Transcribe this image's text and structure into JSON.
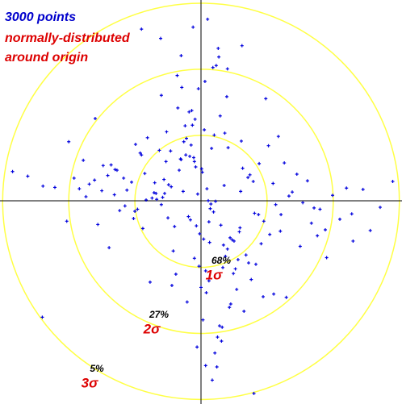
{
  "chart_data": {
    "type": "scatter",
    "annotations": [
      "3000 points",
      "normally-distributed",
      "around origin"
    ],
    "color": "#0000dd",
    "xlim": [
      -3.04,
      3.04
    ],
    "ylim": [
      -3.06,
      3.04
    ],
    "rings": {
      "color": "#ffff44",
      "radii": [
        1,
        2,
        3
      ],
      "labels": [
        "1σ",
        "2σ",
        "3σ"
      ],
      "values": [
        68,
        27,
        5
      ],
      "value_labels": [
        "68%",
        "27%",
        "5%"
      ]
    },
    "x": [
      0.12,
      -0.45,
      0.88,
      -1.23,
      0.05,
      0.34,
      -0.67,
      1.45,
      -0.21,
      0.09,
      -1.78,
      0.56,
      0.23,
      -0.05,
      2.1,
      -0.38,
      0.71,
      -0.92,
      0.15,
      -0.02,
      1.02,
      -0.14,
      0.47,
      -2.21,
      0.31,
      -0.58,
      0.83,
      0.02,
      -0.29,
      1.67,
      -1.05,
      0.19,
      -0.44,
      0.61,
      -0.08,
      2.45,
      -1.39,
      0.26,
      0.94,
      -0.71,
      -0.33,
      0.52,
      -1.61,
      0.07,
      1.21,
      -0.17,
      0.39,
      -0.96,
      0.11,
      -2.62,
      0.68,
      -0.24,
      1.88,
      -0.49,
      0.03,
      -0.81,
      1.33,
      -0.12,
      0.44,
      -1.15,
      0.29,
      -0.07,
      0.76,
      -1.48,
      2.71,
      -0.36,
      0.13,
      1.09,
      -0.63,
      0.21,
      -0.27,
      0.58,
      -1.92,
      0.36,
      -0.1,
      1.54,
      -0.53,
      0.08,
      -0.85,
      0.98,
      -0.19,
      0.41,
      -1.31,
      0.65,
      0.01,
      -2.03,
      1.17,
      -0.42,
      0.27,
      -0.74,
      1.76,
      -0.09,
      0.49,
      -1.12,
      0.17,
      -0.31,
      2.28,
      -0.56,
      0.72,
      -1.69,
      0.06,
      -0.88,
      1.38,
      -0.23,
      0.54,
      -1.41,
      0.14,
      0.91,
      -0.61,
      0.33,
      -2.39,
      1.26,
      -0.16,
      0.45,
      -0.99,
      0.22,
      -0.06,
      1.61,
      -1.27,
      0.37,
      -0.52,
      0.81,
      -0.11,
      1.99,
      -0.77,
      0.18,
      -1.56,
      0.63,
      0.04,
      -0.35,
      1.13,
      -1.84,
      0.28,
      -0.46,
      0.79,
      -0.03,
      2.56,
      -0.68,
      0.1,
      -1.02,
      0.5,
      -0.26,
      1.71,
      -0.6,
      0.24,
      -1.17,
      0.87,
      -0.13,
      -2.85,
      0.4,
      -0.83,
      1.29,
      0.16,
      -0.4,
      0.62,
      -1.5,
      0.07,
      1.04,
      -0.3,
      0.32,
      -0.7,
      1.9,
      -0.04,
      0.59,
      -1.36,
      0.25,
      -0.55,
      0.95,
      -0.18,
      2.2,
      -1.0,
      0.43,
      -0.22,
      0.74,
      -1.74,
      0.12,
      -0.9,
      1.5,
      -0.15,
      0.3,
      0.2,
      -0.5,
      2.9,
      -1.6,
      0.8,
      -0.1,
      1.2,
      -2.4,
      0.6,
      -0.3,
      1.8,
      -0.9,
      0.0,
      -1.3,
      2.3,
      0.4,
      -0.6,
      1.1,
      -2.0,
      0.35
    ],
    "y": [
      -0.31,
      0.22,
      0.57,
      -0.14,
      1.08,
      -0.66,
      0.03,
      0.41,
      -1.52,
      0.19,
      0.62,
      -0.88,
      2.05,
      0.11,
      -0.27,
      -1.1,
      0.36,
      0.73,
      -0.04,
      -0.49,
      0.84,
      1.37,
      -0.58,
      0.21,
      -2.11,
      0.06,
      -0.95,
      0.44,
      1.72,
      -0.33,
      0.29,
      -0.16,
      -1.27,
      0.91,
      0.52,
      0.18,
      -0.7,
      2.31,
      -1.44,
      0.13,
      0.47,
      -1.02,
      0.32,
      -2.48,
      -0.2,
      0.68,
      1.58,
      -0.12,
      0.01,
      0.38,
      -0.81,
      1.14,
      -0.43,
      0.25,
      -1.79,
      0.96,
      0.08,
      2.63,
      -0.55,
      -0.07,
      1.29,
      -0.37,
      -1.18,
      0.54,
      -0.09,
      1.9,
      -0.62,
      0.27,
      0.77,
      -2.29,
      0.15,
      -0.46,
      0.35,
      1.03,
      -0.86,
      -0.02,
      0.6,
      -1.38,
      0.42,
      1.55,
      -0.23,
      0.81,
      0.1,
      -1.66,
      0.49,
      -0.3,
      0.98,
      -0.75,
      2.18,
      0.05,
      -0.52,
      1.24,
      -1.09,
      0.17,
      -2.7,
      0.64,
      -0.19,
      0.33,
      -0.93,
      0.26,
      1.81,
      -0.41,
      0.14,
      0.7,
      -1.33,
      0.39,
      -0.11,
      -0.64,
      2.46,
      -1.0,
      0.23,
      0.58,
      -0.28,
      -1.55,
      0.86,
      0.0,
      -2.2,
      0.31,
      0.47,
      -0.83,
      1.05,
      -0.18,
      0.66,
      0.09,
      -1.22,
      2.02,
      -0.35,
      0.5,
      -0.57,
      1.41,
      -0.05,
      0.19,
      -1.88,
      0.76,
      0.3,
      -0.98,
      -0.44,
      0.12,
      2.75,
      -0.26,
      -0.6,
      0.9,
      -0.1,
      1.6,
      -2.5,
      0.35,
      -0.2,
      1.15,
      0.45,
      -0.72,
      0.02,
      -1.45,
      0.8,
      -0.38,
      2.35,
      0.16,
      -1.05,
      -0.5,
      0.63,
      -1.9,
      0.28,
      -0.85,
      1.7,
      -0.4,
      0.55,
      -2.05,
      0.12,
      -0.3,
      1.35,
      0.2,
      -0.15,
      -1.6,
      0.95,
      0.4,
      0.07,
      -1.2,
      2.6,
      -0.68,
      0.85,
      -0.36,
      1.0,
      -0.25,
      0.3,
      1.25,
      -2.9,
      0.6,
      -0.45,
      -1.75,
      0.15,
      2.2,
      -0.12,
      0.7,
      -1.3,
      0.48,
      -0.6,
      2.0,
      -0.05,
      -1.4,
      0.9,
      0.24
    ]
  }
}
